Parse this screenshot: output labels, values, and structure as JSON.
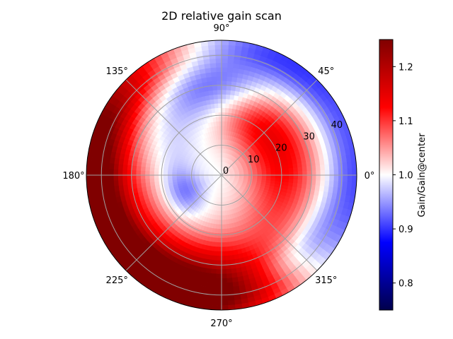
{
  "chart_data": {
    "type": "heatmap",
    "projection": "polar",
    "title": "2D relative gain scan",
    "theta_tick_labels": [
      "0°",
      "45°",
      "90°",
      "135°",
      "180°",
      "225°",
      "270°",
      "315°"
    ],
    "theta_ticks_deg": [
      0,
      45,
      90,
      135,
      180,
      225,
      270,
      315
    ],
    "r_tick_labels": [
      "0",
      "10",
      "20",
      "30",
      "40"
    ],
    "r_ticks": [
      0,
      10,
      20,
      30,
      40
    ],
    "rlim": [
      0,
      45
    ],
    "grid": true,
    "colormap": "seismic",
    "colorbar": {
      "label": "Gain/Gain@center",
      "vmin": 0.75,
      "vmax": 1.25,
      "tick_values": [
        0.8,
        0.9,
        1.0,
        1.1,
        1.2
      ],
      "tick_labels": [
        "0.8",
        "0.9",
        "1.0",
        "1.1",
        "1.2"
      ]
    },
    "value_summary": {
      "outer_ring_west_r_40_45": 1.24,
      "outer_ring_south_r_30_40": 1.18,
      "north_region_r_20_35": 0.88,
      "east_outer_r_40_45": 0.92,
      "southeast_band_r_30_40": 0.93,
      "center_r_0_10": 1.0,
      "inner_ring_east_r_10_30": 1.12
    }
  }
}
